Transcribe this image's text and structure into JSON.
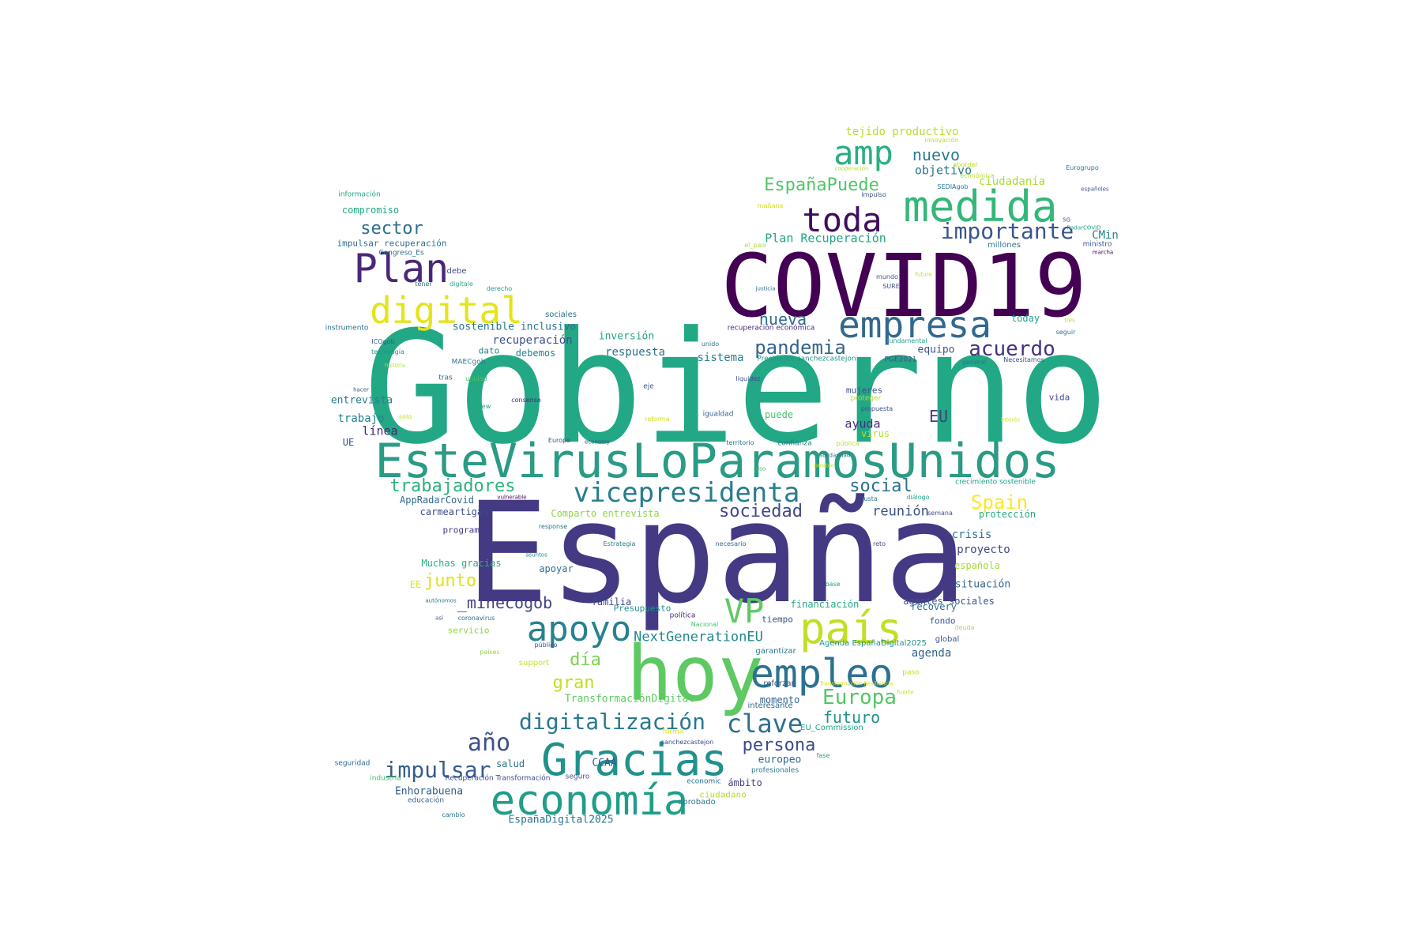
{
  "word_cloud": {
    "words": [
      {
        "text": "Gobierno",
        "color": "#22a884"
      },
      {
        "text": "España",
        "color": "#443983"
      },
      {
        "text": "COVID19",
        "color": "#440154"
      },
      {
        "text": "hoy",
        "color": "#5ec962"
      },
      {
        "text": "EsteVirusLoParamosUnidos",
        "color": "#2a9b84"
      },
      {
        "text": "Gracias",
        "color": "#21918c"
      },
      {
        "text": "economía",
        "color": "#1f9e89"
      },
      {
        "text": "medida",
        "color": "#35b779"
      },
      {
        "text": "país",
        "color": "#c2df23"
      },
      {
        "text": "empresa",
        "color": "#31688e"
      },
      {
        "text": "empleo",
        "color": "#2c728e"
      },
      {
        "text": "Plan",
        "color": "#482878"
      },
      {
        "text": "apoyo",
        "color": "#26828e"
      },
      {
        "text": "toda",
        "color": "#3e0d5c"
      },
      {
        "text": "amp",
        "color": "#29af7f"
      },
      {
        "text": "digital",
        "color": "#e5e419"
      },
      {
        "text": "vicepresidenta",
        "color": "#287d8e"
      },
      {
        "text": "VP",
        "color": "#5ec962"
      },
      {
        "text": "clave",
        "color": "#2d708e"
      },
      {
        "text": "digitalización",
        "color": "#2a788e"
      },
      {
        "text": "año",
        "color": "#3b518b"
      },
      {
        "text": "impulsar",
        "color": "#365c8d"
      },
      {
        "text": "acuerdo",
        "color": "#46327e"
      },
      {
        "text": "pandemia",
        "color": "#33638d"
      },
      {
        "text": "importante",
        "color": "#39568c"
      },
      {
        "text": "Europa",
        "color": "#54c568"
      },
      {
        "text": "trabajadores",
        "color": "#2db27d"
      },
      {
        "text": "sector",
        "color": "#2e6e8e"
      },
      {
        "text": "EspañaPuede",
        "color": "#52c569"
      },
      {
        "text": "nuevo",
        "color": "#297a8e"
      },
      {
        "text": "Spain",
        "color": "#fde725"
      },
      {
        "text": "social",
        "color": "#2c728e"
      },
      {
        "text": "sociedad",
        "color": "#3f4889"
      },
      {
        "text": "persona",
        "color": "#3e4a89"
      },
      {
        "text": "futuro",
        "color": "#21918c"
      },
      {
        "text": "junto",
        "color": "#dde318"
      },
      {
        "text": "día",
        "color": "#7ad151"
      },
      {
        "text": "nueva",
        "color": "#306a8e"
      },
      {
        "text": "gran",
        "color": "#c2df23"
      },
      {
        "text": "_minecogob",
        "color": "#414487"
      },
      {
        "text": "Plan Recuperación",
        "color": "#21a585"
      },
      {
        "text": "NextGenerationEU",
        "color": "#23888e"
      },
      {
        "text": "EU",
        "color": "#433e85"
      },
      {
        "text": "reunión",
        "color": "#3b528b"
      },
      {
        "text": "tejido productivo",
        "color": "#b5de2b"
      },
      {
        "text": "objetivo",
        "color": "#2a788e"
      },
      {
        "text": "ciudadanía",
        "color": "#addc30"
      },
      {
        "text": "compromiso",
        "color": "#22a884"
      },
      {
        "text": "impulsar recuperación",
        "color": "#2f6c8e"
      },
      {
        "text": "respuesta",
        "color": "#2c718e"
      },
      {
        "text": "sistema",
        "color": "#26828e"
      },
      {
        "text": "equipo",
        "color": "#3a548c"
      },
      {
        "text": "recuperación",
        "color": "#3c4f8a"
      },
      {
        "text": "sostenible inclusivo",
        "color": "#2b748e"
      },
      {
        "text": "inversión",
        "color": "#22a884"
      },
      {
        "text": "debemos",
        "color": "#277f8e"
      },
      {
        "text": "línea",
        "color": "#482475"
      },
      {
        "text": "trabajo",
        "color": "#26828e"
      },
      {
        "text": "entrevista",
        "color": "#287c8e"
      },
      {
        "text": "ayuda",
        "color": "#46307e"
      },
      {
        "text": "agenda",
        "color": "#33638d"
      },
      {
        "text": "crisis",
        "color": "#2c728e"
      },
      {
        "text": "proyecto",
        "color": "#3e4989"
      },
      {
        "text": "situación",
        "color": "#31688e"
      },
      {
        "text": "agentes sociales",
        "color": "#39568c"
      },
      {
        "text": "CMin",
        "color": "#25848e"
      },
      {
        "text": "Muchas gracias",
        "color": "#2ab07f"
      },
      {
        "text": "Comparto entrevista",
        "color": "#8fd744"
      },
      {
        "text": "carmeartigas",
        "color": "#3d4d8a"
      },
      {
        "text": "AppRadarCovid",
        "color": "#31688e"
      },
      {
        "text": "programa",
        "color": "#453882"
      },
      {
        "text": "protección",
        "color": "#25ac82"
      },
      {
        "text": "española",
        "color": "#a5db36"
      },
      {
        "text": "apoyar",
        "color": "#2e6f8e"
      },
      {
        "text": "familia",
        "color": "#3f4788"
      },
      {
        "text": "financiación",
        "color": "#24aa83"
      },
      {
        "text": "recovery",
        "color": "#2e6f8e"
      },
      {
        "text": "fondo",
        "color": "#375a8c"
      },
      {
        "text": "TransformaciónDigital",
        "color": "#5ec962"
      },
      {
        "text": "momento",
        "color": "#33628d"
      },
      {
        "text": "europeo",
        "color": "#2f6b8e"
      },
      {
        "text": "salud",
        "color": "#2d718e"
      },
      {
        "text": "CCAA",
        "color": "#3b528b"
      },
      {
        "text": "Enhorabuena",
        "color": "#355f8d"
      },
      {
        "text": "EspañaDigital2025",
        "color": "#2b758e"
      },
      {
        "text": "ciudadano",
        "color": "#b5de2b"
      },
      {
        "text": "aprobado",
        "color": "#2a778e"
      },
      {
        "text": "ámbito",
        "color": "#414487"
      },
      {
        "text": "today",
        "color": "#1f9e89"
      },
      {
        "text": "puede",
        "color": "#4ac16d"
      },
      {
        "text": "virus",
        "color": "#b8de29"
      },
      {
        "text": "mujeres",
        "color": "#3b528b"
      },
      {
        "text": "vida",
        "color": "#3f4889"
      },
      {
        "text": "UE",
        "color": "#3b528b"
      },
      {
        "text": "EE",
        "color": "#e2e418"
      },
      {
        "text": "tiempo",
        "color": "#3c4f8a"
      },
      {
        "text": "Presupuesto",
        "color": "#21918c"
      },
      {
        "text": "servicio",
        "color": "#8bd646"
      },
      {
        "text": "debe",
        "color": "#3d4d8a"
      },
      {
        "text": "garantizar",
        "color": "#2a788e"
      },
      {
        "text": "reforzar",
        "color": "#3b528b"
      },
      {
        "text": "interesante",
        "color": "#306a8e"
      },
      {
        "text": "Agenda EspañaDigital2025",
        "color": "#21918c"
      },
      {
        "text": "global",
        "color": "#3b528b"
      },
      {
        "text": "paso",
        "color": "#c8e020"
      },
      {
        "text": "support",
        "color": "#c2df23"
      },
      {
        "text": "EU_Commission",
        "color": "#20a386"
      },
      {
        "text": "profesionales",
        "color": "#2a788e"
      },
      {
        "text": "economic",
        "color": "#2e6e8e"
      },
      {
        "text": "seguridad",
        "color": "#31688e"
      },
      {
        "text": "industria",
        "color": "#4ac16d"
      },
      {
        "text": "Recuperación Transformación",
        "color": "#3e4a89"
      },
      {
        "text": "educación",
        "color": "#33638d"
      },
      {
        "text": "seguro",
        "color": "#3b528b"
      },
      {
        "text": "sanchezcastejon",
        "color": "#3f4788"
      },
      {
        "text": "fase",
        "color": "#1f9e89"
      },
      {
        "text": "cambio",
        "color": "#2a788e"
      },
      {
        "text": "forma",
        "color": "#d2e21b"
      },
      {
        "text": "información",
        "color": "#20a386"
      },
      {
        "text": "Congreso_Es",
        "color": "#2e6e8e"
      },
      {
        "text": "tener",
        "color": "#2c728e"
      },
      {
        "text": "derecho",
        "color": "#1f9e89"
      },
      {
        "text": "digitale",
        "color": "#22a884"
      },
      {
        "text": "instrumento",
        "color": "#2c728e"
      },
      {
        "text": "ICOgob",
        "color": "#3b528b"
      },
      {
        "text": "tecnología",
        "color": "#21918c"
      },
      {
        "text": "historia",
        "color": "#b5de2b"
      },
      {
        "text": "hacer",
        "color": "#3b528b"
      },
      {
        "text": "solo",
        "color": "#bddf26"
      },
      {
        "text": "MAECgob",
        "color": "#2a788e"
      },
      {
        "text": "dato",
        "color": "#26828e"
      },
      {
        "text": "sociales",
        "color": "#2c728e"
      },
      {
        "text": "tras",
        "color": "#31688e"
      },
      {
        "text": "unidad",
        "color": "#4ac16d"
      },
      {
        "text": "new",
        "color": "#20a386"
      },
      {
        "text": "consenso",
        "color": "#482878"
      },
      {
        "text": "eje",
        "color": "#3b528b"
      },
      {
        "text": "reforma",
        "color": "#d2e21b"
      },
      {
        "text": "igualdad",
        "color": "#33638d"
      },
      {
        "text": "liquidez",
        "color": "#3b528b"
      },
      {
        "text": "Europe",
        "color": "#3b528b"
      },
      {
        "text": "economy",
        "color": "#3b528b"
      },
      {
        "text": "territorio",
        "color": "#2c728e"
      },
      {
        "text": "confianza",
        "color": "#2a788e"
      },
      {
        "text": "pública",
        "color": "#b5de2b"
      },
      {
        "text": "uso",
        "color": "#4ac16d"
      },
      {
        "text": "solidaridad",
        "color": "#2c728e"
      },
      {
        "text": "posible",
        "color": "#d2e21b"
      },
      {
        "text": "justa",
        "color": "#2a788e"
      },
      {
        "text": "diálogo",
        "color": "#22a884"
      },
      {
        "text": "semana",
        "color": "#3b528b"
      },
      {
        "text": "crecimiento sostenible",
        "color": "#1f9e89"
      },
      {
        "text": "vulnerable",
        "color": "#440154"
      },
      {
        "text": "response",
        "color": "#2c728e"
      },
      {
        "text": "asuntos",
        "color": "#26828e"
      },
      {
        "text": "Estrategia",
        "color": "#2a788e"
      },
      {
        "text": "necesario",
        "color": "#2e6e8e"
      },
      {
        "text": "reto",
        "color": "#3b528b"
      },
      {
        "text": "base",
        "color": "#1f9e89"
      },
      {
        "text": "política",
        "color": "#482878"
      },
      {
        "text": "Nacional",
        "color": "#4ac16d"
      },
      {
        "text": "así",
        "color": "#3b528b"
      },
      {
        "text": "coronavirus",
        "color": "#2c728e"
      },
      {
        "text": "público",
        "color": "#3b528b"
      },
      {
        "text": "países",
        "color": "#8fd744"
      },
      {
        "text": "autónomos",
        "color": "#2a788e"
      },
      {
        "text": "Transformación Resiliencia",
        "color": "#d2e21b"
      },
      {
        "text": "fuerte",
        "color": "#b5de2b"
      },
      {
        "text": "deuda",
        "color": "#b5de2b"
      },
      {
        "text": "propuesta",
        "color": "#3b528b"
      },
      {
        "text": "proteger",
        "color": "#b5de2b"
      },
      {
        "text": "interés",
        "color": "#d2e21b"
      },
      {
        "text": "unido",
        "color": "#2a788e"
      },
      {
        "text": "Presidente sanchezcastejon",
        "color": "#21918c"
      },
      {
        "text": "PGE2021",
        "color": "#3b528b"
      },
      {
        "text": "general",
        "color": "#2a788e"
      },
      {
        "text": "Necesitamos",
        "color": "#3b528b"
      },
      {
        "text": "fundamental",
        "color": "#20a386"
      },
      {
        "text": "recuperación económica",
        "color": "#482878"
      },
      {
        "text": "seguir",
        "color": "#2c728e"
      },
      {
        "text": "tres",
        "color": "#b5de2b"
      },
      {
        "text": "mundo",
        "color": "#3b528b"
      },
      {
        "text": "SURE",
        "color": "#3b528b"
      },
      {
        "text": "justicia",
        "color": "#2c728e"
      },
      {
        "text": "future",
        "color": "#b5de2b"
      },
      {
        "text": "el_pais",
        "color": "#b5de2b"
      },
      {
        "text": "millones",
        "color": "#2a788e"
      },
      {
        "text": "ministro",
        "color": "#3b528b"
      },
      {
        "text": "marcha",
        "color": "#440154"
      },
      {
        "text": "RadarCOVID",
        "color": "#20a386"
      },
      {
        "text": "5G",
        "color": "#3b528b"
      },
      {
        "text": "mañana",
        "color": "#d2e21b"
      },
      {
        "text": "impulso",
        "color": "#3b528b"
      },
      {
        "text": "SEDIAgob",
        "color": "#2a788e"
      },
      {
        "text": "españoles",
        "color": "#3b528b"
      },
      {
        "text": "cooperación",
        "color": "#b5de2b"
      },
      {
        "text": "abordar",
        "color": "#b5de2b"
      },
      {
        "text": "económica",
        "color": "#b5de2b"
      },
      {
        "text": "Eurogrupo",
        "color": "#2a788e"
      },
      {
        "text": "innovación",
        "color": "#b5de2b"
      }
    ]
  }
}
